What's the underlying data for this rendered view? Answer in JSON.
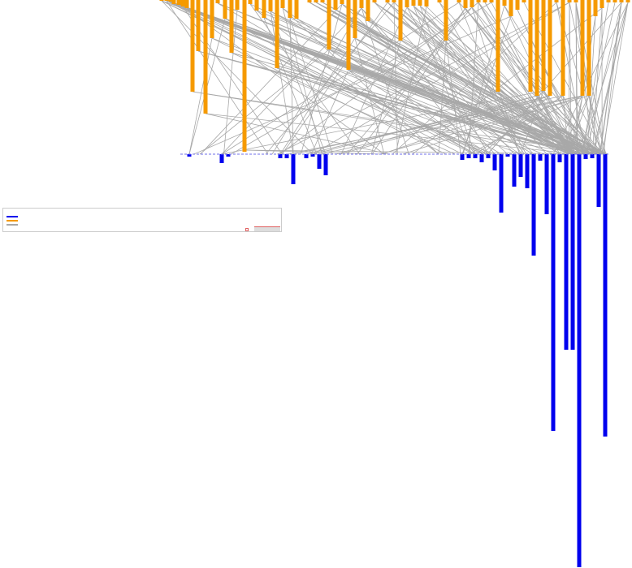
{
  "chart_data": {
    "type": "bar",
    "layout": "mirrored-bars-with-links",
    "axis_range": [
      0,
      100
    ],
    "baseline_style": "dashed",
    "grid": false,
    "legend_placement": "middle-left",
    "legend": {
      "title": "",
      "entries": [
        {
          "name": "",
          "color": "#0000ee"
        },
        {
          "name": "",
          "color": "#f59a00"
        },
        {
          "name": "",
          "color": "#a8a8a8"
        }
      ],
      "note": ""
    },
    "top_series": {
      "color": "#f59a00",
      "bars": [
        {
          "x": 199,
          "v": 1
        },
        {
          "x": 205,
          "v": 1
        },
        {
          "x": 210,
          "v": 2
        },
        {
          "x": 214,
          "v": 5
        },
        {
          "x": 220,
          "v": 6
        },
        {
          "x": 225,
          "v": 8
        },
        {
          "x": 230,
          "v": 10
        },
        {
          "x": 237,
          "v": 113
        },
        {
          "x": 244,
          "v": 63
        },
        {
          "x": 253,
          "v": 140
        },
        {
          "x": 261,
          "v": 47
        },
        {
          "x": 268,
          "v": 4
        },
        {
          "x": 277,
          "v": 23
        },
        {
          "x": 285,
          "v": 65
        },
        {
          "x": 292,
          "v": 12
        },
        {
          "x": 301,
          "v": 187
        },
        {
          "x": 308,
          "v": 5
        },
        {
          "x": 316,
          "v": 13
        },
        {
          "x": 325,
          "v": 22
        },
        {
          "x": 333,
          "v": 14
        },
        {
          "x": 341,
          "v": 84
        },
        {
          "x": 348,
          "v": 10
        },
        {
          "x": 357,
          "v": 22
        },
        {
          "x": 365,
          "v": 23
        },
        {
          "x": 381,
          "v": 3
        },
        {
          "x": 389,
          "v": 3
        },
        {
          "x": 397,
          "v": 3
        },
        {
          "x": 405,
          "v": 61
        },
        {
          "x": 413,
          "v": 12
        },
        {
          "x": 421,
          "v": 5
        },
        {
          "x": 429,
          "v": 86
        },
        {
          "x": 437,
          "v": 47
        },
        {
          "x": 445,
          "v": 10
        },
        {
          "x": 453,
          "v": 26
        },
        {
          "x": 461,
          "v": 3
        },
        {
          "x": 477,
          "v": 3
        },
        {
          "x": 485,
          "v": 3
        },
        {
          "x": 493,
          "v": 50
        },
        {
          "x": 501,
          "v": 9
        },
        {
          "x": 509,
          "v": 7
        },
        {
          "x": 517,
          "v": 7
        },
        {
          "x": 525,
          "v": 8
        },
        {
          "x": 541,
          "v": 3
        },
        {
          "x": 549,
          "v": 50
        },
        {
          "x": 565,
          "v": 3
        },
        {
          "x": 573,
          "v": 10
        },
        {
          "x": 581,
          "v": 9
        },
        {
          "x": 589,
          "v": 3
        },
        {
          "x": 597,
          "v": 3
        },
        {
          "x": 605,
          "v": 3
        },
        {
          "x": 613,
          "v": 113
        },
        {
          "x": 621,
          "v": 7
        },
        {
          "x": 629,
          "v": 20
        },
        {
          "x": 637,
          "v": 12
        },
        {
          "x": 645,
          "v": 3
        },
        {
          "x": 653,
          "v": 113
        },
        {
          "x": 661,
          "v": 118
        },
        {
          "x": 669,
          "v": 112
        },
        {
          "x": 677,
          "v": 118
        },
        {
          "x": 685,
          "v": 3
        },
        {
          "x": 693,
          "v": 118
        },
        {
          "x": 701,
          "v": 3
        },
        {
          "x": 709,
          "v": 3
        },
        {
          "x": 717,
          "v": 118
        },
        {
          "x": 725,
          "v": 118
        },
        {
          "x": 733,
          "v": 20
        },
        {
          "x": 741,
          "v": 10
        },
        {
          "x": 749,
          "v": 3
        },
        {
          "x": 757,
          "v": 3
        },
        {
          "x": 765,
          "v": 3
        },
        {
          "x": 773,
          "v": 3
        }
      ]
    },
    "bottom_series": {
      "color": "#0000ee",
      "bars": [
        {
          "x": 233,
          "v": 3
        },
        {
          "x": 273,
          "v": 11
        },
        {
          "x": 281,
          "v": 3
        },
        {
          "x": 345,
          "v": 5
        },
        {
          "x": 353,
          "v": 5
        },
        {
          "x": 361,
          "v": 37
        },
        {
          "x": 377,
          "v": 5
        },
        {
          "x": 385,
          "v": 3
        },
        {
          "x": 393,
          "v": 18
        },
        {
          "x": 401,
          "v": 26
        },
        {
          "x": 569,
          "v": 7
        },
        {
          "x": 577,
          "v": 5
        },
        {
          "x": 585,
          "v": 5
        },
        {
          "x": 593,
          "v": 10
        },
        {
          "x": 601,
          "v": 5
        },
        {
          "x": 609,
          "v": 20
        },
        {
          "x": 617,
          "v": 72
        },
        {
          "x": 625,
          "v": 3
        },
        {
          "x": 633,
          "v": 40
        },
        {
          "x": 641,
          "v": 28
        },
        {
          "x": 649,
          "v": 42
        },
        {
          "x": 657,
          "v": 125
        },
        {
          "x": 665,
          "v": 8
        },
        {
          "x": 673,
          "v": 74
        },
        {
          "x": 681,
          "v": 341
        },
        {
          "x": 689,
          "v": 10
        },
        {
          "x": 697,
          "v": 241
        },
        {
          "x": 705,
          "v": 241
        },
        {
          "x": 713,
          "v": 509
        },
        {
          "x": 721,
          "v": 6
        },
        {
          "x": 729,
          "v": 5
        },
        {
          "x": 737,
          "v": 65
        },
        {
          "x": 745,
          "v": 348
        }
      ]
    },
    "link_color": "#a8a8a8"
  }
}
